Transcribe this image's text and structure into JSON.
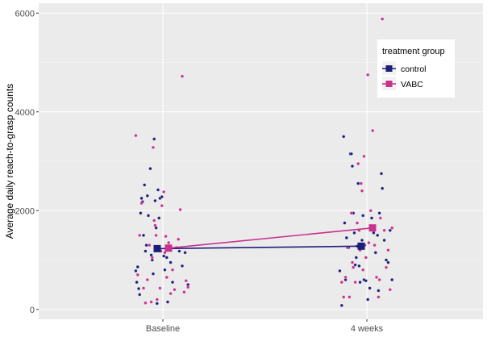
{
  "chart_data": {
    "type": "scatter",
    "title": "",
    "xlabel": "",
    "ylabel": "Average daily reach-to-grasp counts",
    "categories": [
      "Baseline",
      "4 weeks"
    ],
    "ylim": [
      -200,
      6200
    ],
    "yticks": [
      0,
      2000,
      4000,
      6000
    ],
    "grid": true,
    "legend": {
      "title": "treatment group",
      "placement": "top-right"
    },
    "series": [
      {
        "name": "control",
        "color": "#1c1f78",
        "means": [
          1230,
          1280
        ],
        "points": [
          [
            -0.28,
            780
          ],
          [
            -0.27,
            550
          ],
          [
            -0.26,
            860
          ],
          [
            -0.25,
            420
          ],
          [
            -0.24,
            300
          ],
          [
            -0.23,
            1950
          ],
          [
            -0.22,
            2250
          ],
          [
            -0.21,
            2180
          ],
          [
            -0.2,
            1500
          ],
          [
            -0.19,
            2520
          ],
          [
            -0.17,
            1300
          ],
          [
            -0.16,
            2300
          ],
          [
            -0.15,
            1900
          ],
          [
            -0.13,
            2850
          ],
          [
            -0.12,
            1100
          ],
          [
            -0.11,
            1000
          ],
          [
            -0.1,
            720
          ],
          [
            -0.09,
            3450
          ],
          [
            -0.08,
            2200
          ],
          [
            -0.07,
            1650
          ],
          [
            -0.06,
            120
          ],
          [
            -0.05,
            2420
          ],
          [
            -0.04,
            1850
          ],
          [
            -0.03,
            2250
          ],
          [
            -0.01,
            2280
          ],
          [
            0.01,
            1080
          ],
          [
            0.02,
            800
          ],
          [
            0.04,
            1050
          ],
          [
            0.05,
            150
          ],
          [
            0.08,
            950
          ],
          [
            0.1,
            550
          ],
          [
            0.14,
            1250
          ],
          [
            0.17,
            1180
          ],
          [
            0.2,
            880
          ],
          [
            0.23,
            1150
          ],
          [
            0.26,
            500
          ],
          [
            -0.18,
            1180
          ],
          [
            0.12,
            380
          ],
          [
            -0.28,
            780
          ],
          [
            -0.26,
            80
          ],
          [
            -0.24,
            3500
          ],
          [
            -0.23,
            1750
          ],
          [
            -0.22,
            600
          ],
          [
            -0.21,
            1450
          ],
          [
            -0.19,
            1250
          ],
          [
            -0.17,
            3150
          ],
          [
            -0.16,
            3150
          ],
          [
            -0.15,
            2900
          ],
          [
            -0.14,
            1950
          ],
          [
            -0.13,
            1550
          ],
          [
            -0.12,
            900
          ],
          [
            -0.11,
            1050
          ],
          [
            -0.1,
            1280
          ],
          [
            -0.09,
            2550
          ],
          [
            -0.08,
            880
          ],
          [
            -0.07,
            550
          ],
          [
            -0.05,
            1400
          ],
          [
            -0.04,
            1900
          ],
          [
            -0.03,
            600
          ],
          [
            -0.01,
            580
          ],
          [
            0.01,
            200
          ],
          [
            0.03,
            430
          ],
          [
            0.05,
            1850
          ],
          [
            0.07,
            1550
          ],
          [
            0.09,
            1150
          ],
          [
            0.11,
            1500
          ],
          [
            0.13,
            1950
          ],
          [
            0.15,
            2750
          ],
          [
            0.16,
            2450
          ],
          [
            0.18,
            1400
          ],
          [
            0.2,
            1000
          ],
          [
            0.22,
            950
          ],
          [
            0.24,
            1600
          ],
          [
            0.26,
            600
          ]
        ]
      },
      {
        "name": "VABC",
        "color": "#c8318e",
        "means": [
          1240,
          1650
        ],
        "points": [
          [
            -0.28,
            3520
          ],
          [
            -0.26,
            700
          ],
          [
            -0.24,
            1500
          ],
          [
            -0.22,
            2150
          ],
          [
            -0.2,
            430
          ],
          [
            -0.18,
            130
          ],
          [
            -0.16,
            600
          ],
          [
            -0.14,
            1300
          ],
          [
            -0.12,
            150
          ],
          [
            -0.1,
            3280
          ],
          [
            -0.09,
            1800
          ],
          [
            -0.08,
            1700
          ],
          [
            -0.07,
            1500
          ],
          [
            -0.06,
            200
          ],
          [
            -0.05,
            1200
          ],
          [
            -0.04,
            1250
          ],
          [
            -0.03,
            430
          ],
          [
            -0.02,
            1180
          ],
          [
            -0.01,
            2100
          ],
          [
            0.01,
            2380
          ],
          [
            0.02,
            1150
          ],
          [
            0.03,
            1480
          ],
          [
            0.04,
            650
          ],
          [
            0.06,
            1350
          ],
          [
            0.08,
            320
          ],
          [
            0.1,
            800
          ],
          [
            0.12,
            400
          ],
          [
            0.14,
            1250
          ],
          [
            0.16,
            1420
          ],
          [
            0.18,
            2020
          ],
          [
            0.2,
            4720
          ],
          [
            0.22,
            350
          ],
          [
            0.24,
            580
          ],
          [
            0.26,
            450
          ],
          [
            -0.11,
            1050
          ],
          [
            -0.26,
            550
          ],
          [
            -0.24,
            250
          ],
          [
            -0.22,
            650
          ],
          [
            -0.2,
            1250
          ],
          [
            -0.18,
            250
          ],
          [
            -0.16,
            1950
          ],
          [
            -0.14,
            850
          ],
          [
            -0.12,
            550
          ],
          [
            -0.1,
            1750
          ],
          [
            -0.09,
            2950
          ],
          [
            -0.08,
            1600
          ],
          [
            -0.07,
            1200
          ],
          [
            -0.06,
            2550
          ],
          [
            -0.05,
            2400
          ],
          [
            -0.04,
            800
          ],
          [
            -0.03,
            3100
          ],
          [
            -0.02,
            1300
          ],
          [
            -0.01,
            1050
          ],
          [
            0.01,
            4750
          ],
          [
            0.02,
            1350
          ],
          [
            0.04,
            2000
          ],
          [
            0.06,
            3620
          ],
          [
            0.08,
            1300
          ],
          [
            0.1,
            650
          ],
          [
            0.12,
            250
          ],
          [
            0.14,
            1850
          ],
          [
            0.16,
            5880
          ],
          [
            0.18,
            1600
          ],
          [
            0.2,
            850
          ],
          [
            0.22,
            1200
          ],
          [
            0.24,
            400
          ],
          [
            0.26,
            1650
          ],
          [
            0.13,
            600
          ],
          [
            -0.15,
            950
          ]
        ]
      }
    ]
  }
}
